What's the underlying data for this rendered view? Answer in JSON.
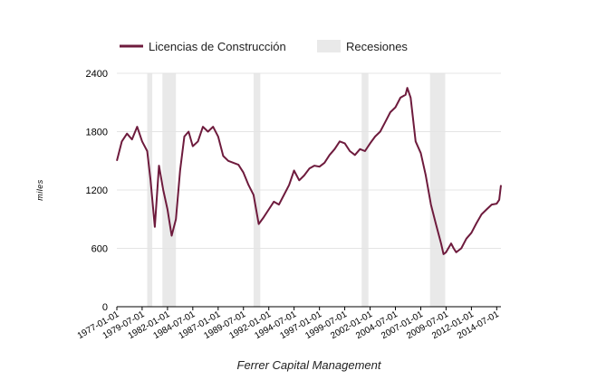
{
  "chart_data": {
    "type": "line",
    "title": "",
    "xlabel": "Ferrer Capital Management",
    "ylabel": "miles",
    "ylim": [
      0,
      2400
    ],
    "xlim": [
      "1977-01-01",
      "2014-12-01"
    ],
    "yticks": [
      0,
      600,
      1200,
      1800,
      2400
    ],
    "xticks": [
      "1977-01-01",
      "1979-07-01",
      "1982-01-01",
      "1984-07-01",
      "1987-01-01",
      "1989-07-01",
      "1992-01-01",
      "1994-07-01",
      "1997-01-01",
      "1999-07-01",
      "2002-01-01",
      "2004-07-01",
      "2007-01-01",
      "2009-07-01",
      "2012-01-01",
      "2014-07-01"
    ],
    "grid": "horizontal",
    "legend_position": "top-left",
    "colors": {
      "series": "#6e1b3d",
      "recession": "#e9e9e9"
    },
    "series": [
      {
        "name": "Licencias de Construcción",
        "x": [
          "1977-01-01",
          "1977-07-01",
          "1978-01-01",
          "1978-07-01",
          "1979-01-01",
          "1979-07-01",
          "1980-01-01",
          "1980-05-01",
          "1980-10-01",
          "1981-03-01",
          "1981-08-01",
          "1982-01-01",
          "1982-06-01",
          "1982-11-01",
          "1983-04-01",
          "1983-09-01",
          "1984-02-01",
          "1984-07-01",
          "1985-01-01",
          "1985-07-01",
          "1986-01-01",
          "1986-07-01",
          "1987-01-01",
          "1987-07-01",
          "1988-01-01",
          "1988-07-01",
          "1989-01-01",
          "1989-07-01",
          "1990-01-01",
          "1990-07-01",
          "1991-01-01",
          "1991-07-01",
          "1992-01-01",
          "1992-07-01",
          "1993-01-01",
          "1993-07-01",
          "1994-01-01",
          "1994-07-01",
          "1995-01-01",
          "1995-07-01",
          "1996-01-01",
          "1996-07-01",
          "1997-01-01",
          "1997-07-01",
          "1998-01-01",
          "1998-07-01",
          "1999-01-01",
          "1999-07-01",
          "2000-01-01",
          "2000-07-01",
          "2001-01-01",
          "2001-07-01",
          "2002-01-01",
          "2002-07-01",
          "2003-01-01",
          "2003-07-01",
          "2004-01-01",
          "2004-07-01",
          "2005-01-01",
          "2005-07-01",
          "2005-09-01",
          "2006-01-01",
          "2006-07-01",
          "2007-01-01",
          "2007-07-01",
          "2008-01-01",
          "2008-07-01",
          "2009-01-01",
          "2009-04-01",
          "2009-07-01",
          "2010-01-01",
          "2010-04-01",
          "2010-07-01",
          "2011-01-01",
          "2011-07-01",
          "2012-01-01",
          "2012-07-01",
          "2013-01-01",
          "2013-07-01",
          "2014-01-01",
          "2014-07-01",
          "2014-10-01",
          "2014-12-01"
        ],
        "values": [
          1500,
          1700,
          1780,
          1720,
          1850,
          1700,
          1600,
          1300,
          820,
          1450,
          1200,
          1000,
          730,
          900,
          1400,
          1750,
          1800,
          1650,
          1700,
          1850,
          1800,
          1850,
          1750,
          1550,
          1500,
          1480,
          1460,
          1380,
          1250,
          1150,
          850,
          920,
          1000,
          1080,
          1050,
          1150,
          1250,
          1400,
          1300,
          1350,
          1420,
          1450,
          1440,
          1480,
          1560,
          1620,
          1700,
          1680,
          1600,
          1560,
          1620,
          1600,
          1680,
          1750,
          1800,
          1900,
          2000,
          2050,
          2150,
          2180,
          2250,
          2150,
          1700,
          1580,
          1350,
          1050,
          850,
          650,
          540,
          560,
          650,
          600,
          560,
          600,
          700,
          760,
          860,
          950,
          1000,
          1050,
          1060,
          1100,
          1250
        ]
      }
    ],
    "recessions": [
      {
        "start": "1980-01-01",
        "end": "1980-07-01"
      },
      {
        "start": "1981-07-01",
        "end": "1982-11-01"
      },
      {
        "start": "1990-07-01",
        "end": "1991-03-01"
      },
      {
        "start": "2001-03-01",
        "end": "2001-11-01"
      },
      {
        "start": "2007-12-01",
        "end": "2009-06-01"
      }
    ],
    "legend": [
      {
        "label": "Licencias de Construcción",
        "kind": "line"
      },
      {
        "label": "Recesiones",
        "kind": "box"
      }
    ]
  }
}
